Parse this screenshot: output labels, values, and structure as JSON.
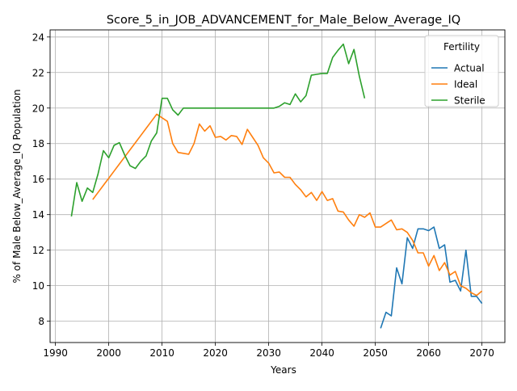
{
  "chart_data": {
    "type": "line",
    "title": "Score_5_in_JOB_ADVANCEMENT_for_Male_Below_Average_IQ",
    "xlabel": "Years",
    "ylabel": "% of Male Below_Average_IQ Population",
    "xlim": [
      1989,
      2074.3
    ],
    "ylim": [
      6.8,
      24.4
    ],
    "xticks": [
      1990,
      2000,
      2010,
      2020,
      2030,
      2040,
      2050,
      2060,
      2070
    ],
    "yticks": [
      8,
      10,
      12,
      14,
      16,
      18,
      20,
      22,
      24
    ],
    "grid": true,
    "legend": {
      "title": "Fertility",
      "placement": "top-right"
    },
    "series": [
      {
        "name": "Actual",
        "color": "#1f77b4",
        "x": [
          2051,
          2052,
          2053,
          2054,
          2055,
          2056,
          2057,
          2058,
          2059,
          2060,
          2061,
          2062,
          2063,
          2064,
          2065,
          2066,
          2067,
          2068,
          2069,
          2070
        ],
        "y": [
          7.6,
          8.5,
          8.3,
          11.0,
          10.1,
          12.7,
          12.1,
          13.2,
          13.2,
          13.1,
          13.3,
          12.1,
          12.3,
          10.2,
          10.3,
          9.7,
          12.0,
          9.4,
          9.4,
          9.0
        ]
      },
      {
        "name": "Ideal",
        "color": "#ff7f0e",
        "x": [
          1997,
          1998,
          1999,
          2000,
          2001,
          2002,
          2003,
          2004,
          2005,
          2006,
          2007,
          2008,
          2009,
          2010,
          2011,
          2012,
          2013,
          2014,
          2015,
          2016,
          2017,
          2018,
          2019,
          2020,
          2021,
          2022,
          2023,
          2024,
          2025,
          2026,
          2027,
          2028,
          2029,
          2030,
          2031,
          2032,
          2033,
          2034,
          2035,
          2036,
          2037,
          2038,
          2039,
          2040,
          2041,
          2042,
          2043,
          2044,
          2045,
          2046,
          2047,
          2048,
          2049,
          2050,
          2051,
          2052,
          2053,
          2054,
          2055,
          2056,
          2057,
          2058,
          2059,
          2060,
          2061,
          2062,
          2063,
          2064,
          2065,
          2066,
          2067,
          2068,
          2069,
          2070
        ],
        "y": [
          14.85,
          15.25,
          15.65,
          16.05,
          16.45,
          16.85,
          17.25,
          17.65,
          18.05,
          18.45,
          18.85,
          19.25,
          19.65,
          19.45,
          19.25,
          18.0,
          17.5,
          17.45,
          17.4,
          18.0,
          19.1,
          18.7,
          19.0,
          18.35,
          18.4,
          18.2,
          18.45,
          18.4,
          17.95,
          18.8,
          18.35,
          17.9,
          17.2,
          16.9,
          16.35,
          16.4,
          16.1,
          16.1,
          15.7,
          15.4,
          15.0,
          15.25,
          14.8,
          15.3,
          14.8,
          14.9,
          14.2,
          14.15,
          13.7,
          13.35,
          14.0,
          13.85,
          14.1,
          13.3,
          13.3,
          13.5,
          13.7,
          13.15,
          13.2,
          13.0,
          12.55,
          11.85,
          11.85,
          11.1,
          11.7,
          10.85,
          11.3,
          10.6,
          10.8,
          10.0,
          9.85,
          9.6,
          9.45,
          9.7
        ]
      },
      {
        "name": "Sterile",
        "color": "#2ca02c",
        "x": [
          1993,
          1994,
          1995,
          1996,
          1997,
          1998,
          1999,
          2000,
          2001,
          2002,
          2003,
          2004,
          2005,
          2006,
          2007,
          2008,
          2009,
          2010,
          2011,
          2012,
          2013,
          2014,
          2015,
          2016,
          2017,
          2018,
          2019,
          2020,
          2021,
          2022,
          2023,
          2024,
          2025,
          2026,
          2027,
          2028,
          2029,
          2030,
          2031,
          2032,
          2033,
          2034,
          2035,
          2036,
          2037,
          2038,
          2039,
          2040,
          2041,
          2042,
          2043,
          2044,
          2045,
          2046,
          2047,
          2048
        ],
        "y": [
          13.9,
          15.8,
          14.75,
          15.5,
          15.25,
          16.3,
          17.6,
          17.2,
          17.9,
          18.05,
          17.35,
          16.75,
          16.6,
          17.0,
          17.3,
          18.15,
          18.6,
          20.55,
          20.55,
          19.9,
          19.6,
          20.0,
          20.0,
          20.0,
          20.0,
          20.0,
          20.0,
          20.0,
          20.0,
          20.0,
          20.0,
          20.0,
          20.0,
          20.0,
          20.0,
          20.0,
          20.0,
          20.0,
          20.0,
          20.1,
          20.3,
          20.2,
          20.8,
          20.35,
          20.7,
          21.85,
          21.9,
          21.95,
          21.95,
          22.85,
          23.25,
          23.6,
          22.5,
          23.3,
          21.8,
          20.55
        ]
      }
    ]
  }
}
